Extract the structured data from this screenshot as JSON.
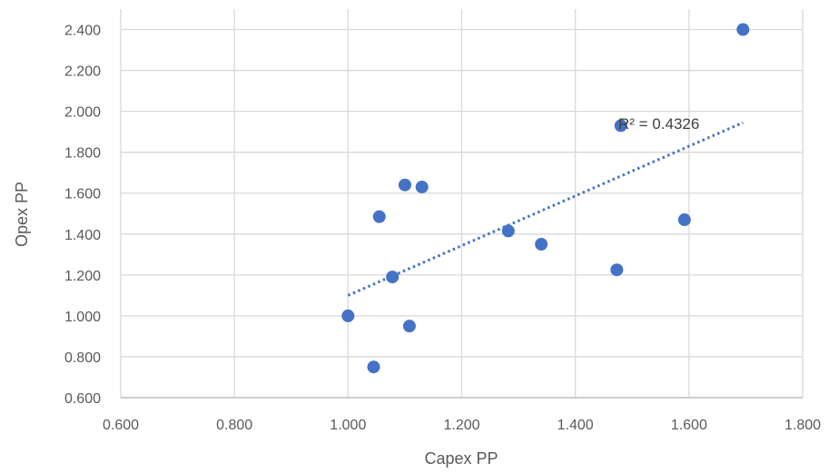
{
  "chart_data": {
    "type": "scatter",
    "title": "",
    "xlabel": "Capex PP",
    "ylabel": "Opex PP",
    "xlim": [
      0.6,
      1.8
    ],
    "ylim": [
      0.6,
      2.5
    ],
    "x_ticks": [
      "0.600",
      "0.800",
      "1.000",
      "1.200",
      "1.400",
      "1.600",
      "1.800"
    ],
    "y_ticks": [
      "0.600",
      "0.800",
      "1.000",
      "1.200",
      "1.400",
      "1.600",
      "1.800",
      "2.000",
      "2.200",
      "2.400"
    ],
    "grid": true,
    "legend": "none",
    "marker_color": "#4472C4",
    "series": [
      {
        "points": [
          {
            "x": 1.0,
            "y": 1.0
          },
          {
            "x": 1.045,
            "y": 0.75
          },
          {
            "x": 1.055,
            "y": 1.485
          },
          {
            "x": 1.078,
            "y": 1.19
          },
          {
            "x": 1.1,
            "y": 1.64
          },
          {
            "x": 1.108,
            "y": 0.95
          },
          {
            "x": 1.13,
            "y": 1.63
          },
          {
            "x": 1.282,
            "y": 1.415
          },
          {
            "x": 1.34,
            "y": 1.35
          },
          {
            "x": 1.473,
            "y": 1.225
          },
          {
            "x": 1.48,
            "y": 1.93
          },
          {
            "x": 1.592,
            "y": 1.47
          },
          {
            "x": 1.695,
            "y": 2.4
          }
        ]
      }
    ],
    "trendline": {
      "type": "linear",
      "style": "dotted",
      "color": "#4472C4",
      "x_start": 1.0,
      "y_start": 1.1,
      "x_end": 1.695,
      "y_end": 1.945,
      "label": "R² = 0.4326"
    }
  }
}
